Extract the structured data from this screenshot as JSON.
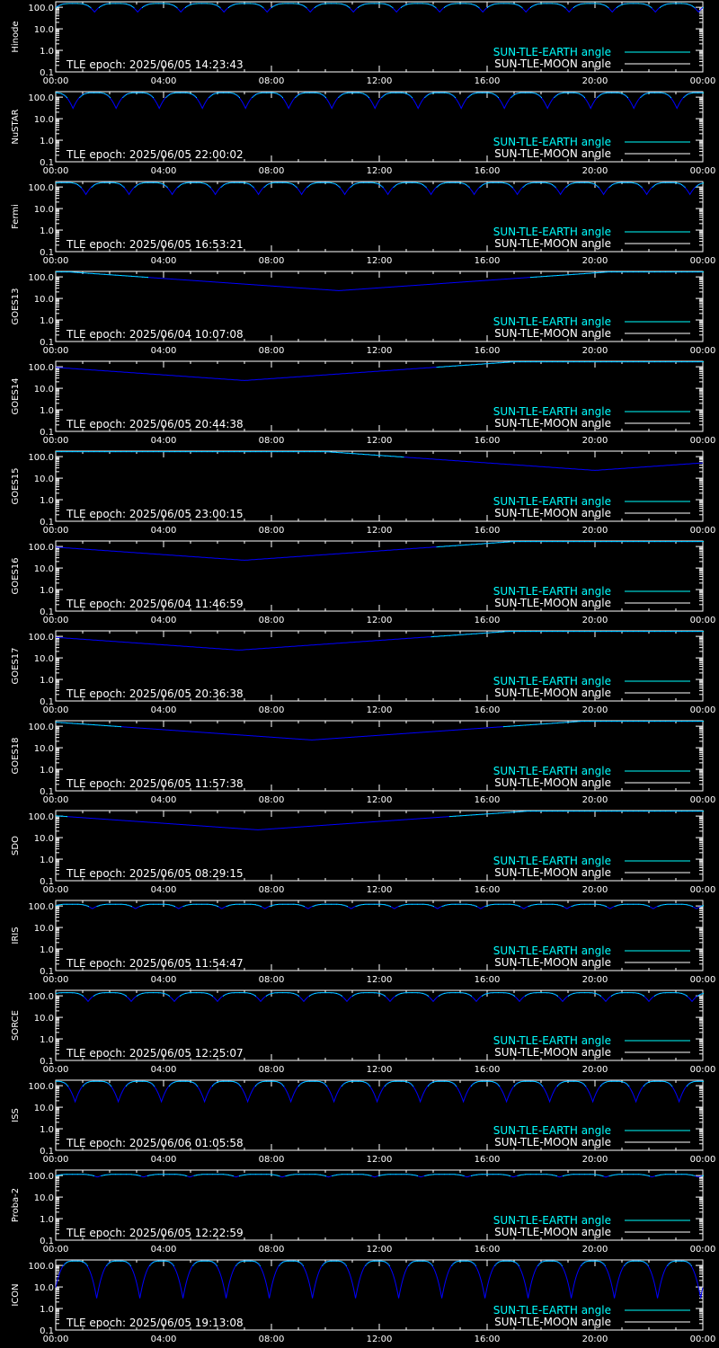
{
  "colors": {
    "background": "#000000",
    "axes": "#ffffff",
    "earth_angle": "#00ffff",
    "moon_angle": "#ffffff",
    "earth_angle_curve": "#0000ff"
  },
  "chart_data": [
    {
      "type": "line",
      "ylabel": "Hinode",
      "epoch": "TLE epoch: 2025/06/05 14:23:43",
      "yticks": [
        "100.0",
        "10.0",
        "1.0",
        "0.1"
      ],
      "xticks": [
        "00:00",
        "04:00",
        "08:00",
        "12:00",
        "16:00",
        "20:00",
        "00:00"
      ],
      "legend": [
        "SUN-TLE-EARTH angle",
        "SUN-TLE-MOON angle"
      ],
      "yscale": "log",
      "ylim": [
        0.1,
        180
      ],
      "pattern": "periodic",
      "orbits": 15,
      "min_deg": 60,
      "max_deg": 150,
      "phase": 0.1
    },
    {
      "type": "line",
      "ylabel": "NuSTAR",
      "epoch": "TLE epoch: 2025/06/05 22:00:02",
      "yticks": [
        "100.0",
        "10.0",
        "1.0",
        "0.1"
      ],
      "xticks": [
        "00:00",
        "04:00",
        "08:00",
        "12:00",
        "16:00",
        "20:00",
        "00:00"
      ],
      "legend": [
        "SUN-TLE-EARTH angle",
        "SUN-TLE-MOON angle"
      ],
      "yscale": "log",
      "ylim": [
        0.1,
        180
      ],
      "pattern": "periodic",
      "orbits": 15,
      "min_deg": 30,
      "max_deg": 160,
      "phase": 0.6
    },
    {
      "type": "line",
      "ylabel": "Fermi",
      "epoch": "TLE epoch: 2025/06/05 16:53:21",
      "yticks": [
        "100.0",
        "10.0",
        "1.0",
        "0.1"
      ],
      "xticks": [
        "00:00",
        "04:00",
        "08:00",
        "12:00",
        "16:00",
        "20:00",
        "00:00"
      ],
      "legend": [
        "SUN-TLE-EARTH angle",
        "SUN-TLE-MOON angle"
      ],
      "yscale": "log",
      "ylim": [
        0.1,
        180
      ],
      "pattern": "periodic",
      "orbits": 15,
      "min_deg": 45,
      "max_deg": 160,
      "phase": 0.3
    },
    {
      "type": "line",
      "ylabel": "GOES13",
      "epoch": "TLE epoch: 2025/06/04 10:07:08",
      "yticks": [
        "100.0",
        "10.0",
        "1.0",
        "0.1"
      ],
      "xticks": [
        "00:00",
        "04:00",
        "08:00",
        "12:00",
        "16:00",
        "20:00",
        "00:00"
      ],
      "legend": [
        "SUN-TLE-EARTH angle",
        "SUN-TLE-MOON angle"
      ],
      "yscale": "log",
      "ylim": [
        0.1,
        180
      ],
      "pattern": "geo",
      "min_hour": 10.5,
      "min_deg": 23,
      "max_deg": 170
    },
    {
      "type": "line",
      "ylabel": "GOES14",
      "epoch": "TLE epoch: 2025/06/05 20:44:38",
      "yticks": [
        "100.0",
        "10.0",
        "1.0",
        "0.1"
      ],
      "xticks": [
        "00:00",
        "04:00",
        "08:00",
        "12:00",
        "16:00",
        "20:00",
        "00:00"
      ],
      "legend": [
        "SUN-TLE-EARTH angle",
        "SUN-TLE-MOON angle"
      ],
      "yscale": "log",
      "ylim": [
        0.1,
        180
      ],
      "pattern": "geo",
      "min_hour": 7.0,
      "min_deg": 23,
      "max_deg": 170
    },
    {
      "type": "line",
      "ylabel": "GOES15",
      "epoch": "TLE epoch: 2025/06/05 23:00:15",
      "yticks": [
        "100.0",
        "10.0",
        "1.0",
        "0.1"
      ],
      "xticks": [
        "00:00",
        "04:00",
        "08:00",
        "12:00",
        "16:00",
        "20:00",
        "00:00"
      ],
      "legend": [
        "SUN-TLE-EARTH angle",
        "SUN-TLE-MOON angle"
      ],
      "yscale": "log",
      "ylim": [
        0.1,
        180
      ],
      "pattern": "geo",
      "min_hour": 20.0,
      "min_deg": 23,
      "max_deg": 170
    },
    {
      "type": "line",
      "ylabel": "GOES16",
      "epoch": "TLE epoch: 2025/06/04 11:46:59",
      "yticks": [
        "100.0",
        "10.0",
        "1.0",
        "0.1"
      ],
      "xticks": [
        "00:00",
        "04:00",
        "08:00",
        "12:00",
        "16:00",
        "20:00",
        "00:00"
      ],
      "legend": [
        "SUN-TLE-EARTH angle",
        "SUN-TLE-MOON angle"
      ],
      "yscale": "log",
      "ylim": [
        0.1,
        180
      ],
      "pattern": "geo",
      "min_hour": 7.0,
      "min_deg": 23,
      "max_deg": 170
    },
    {
      "type": "line",
      "ylabel": "GOES17",
      "epoch": "TLE epoch: 2025/06/05 20:36:38",
      "yticks": [
        "100.0",
        "10.0",
        "1.0",
        "0.1"
      ],
      "xticks": [
        "00:00",
        "04:00",
        "08:00",
        "12:00",
        "16:00",
        "20:00",
        "00:00"
      ],
      "legend": [
        "SUN-TLE-EARTH angle",
        "SUN-TLE-MOON angle"
      ],
      "yscale": "log",
      "ylim": [
        0.1,
        180
      ],
      "pattern": "geo",
      "min_hour": 6.8,
      "min_deg": 23,
      "max_deg": 170
    },
    {
      "type": "line",
      "ylabel": "GOES18",
      "epoch": "TLE epoch: 2025/06/05 11:57:38",
      "yticks": [
        "100.0",
        "10.0",
        "1.0",
        "0.1"
      ],
      "xticks": [
        "00:00",
        "04:00",
        "08:00",
        "12:00",
        "16:00",
        "20:00",
        "00:00"
      ],
      "legend": [
        "SUN-TLE-EARTH angle",
        "SUN-TLE-MOON angle"
      ],
      "yscale": "log",
      "ylim": [
        0.1,
        180
      ],
      "pattern": "geo",
      "min_hour": 9.5,
      "min_deg": 23,
      "max_deg": 170
    },
    {
      "type": "line",
      "ylabel": "SDO",
      "epoch": "TLE epoch: 2025/06/05 08:29:15",
      "yticks": [
        "100.0",
        "10.0",
        "1.0",
        "0.1"
      ],
      "xticks": [
        "00:00",
        "04:00",
        "08:00",
        "12:00",
        "16:00",
        "20:00",
        "00:00"
      ],
      "legend": [
        "SUN-TLE-EARTH angle",
        "SUN-TLE-MOON angle"
      ],
      "yscale": "log",
      "ylim": [
        0.1,
        180
      ],
      "pattern": "geo",
      "min_hour": 7.5,
      "min_deg": 23,
      "max_deg": 170
    },
    {
      "type": "line",
      "ylabel": "IRIS",
      "epoch": "TLE epoch: 2025/06/05 11:54:47",
      "yticks": [
        "100.0",
        "10.0",
        "1.0",
        "0.1"
      ],
      "xticks": [
        "00:00",
        "04:00",
        "08:00",
        "12:00",
        "16:00",
        "20:00",
        "00:00"
      ],
      "legend": [
        "SUN-TLE-EARTH angle",
        "SUN-TLE-MOON angle"
      ],
      "yscale": "log",
      "ylim": [
        0.1,
        180
      ],
      "pattern": "periodic",
      "orbits": 15,
      "min_deg": 75,
      "max_deg": 120,
      "phase": 0.15
    },
    {
      "type": "line",
      "ylabel": "SORCE",
      "epoch": "TLE epoch: 2025/06/05 12:25:07",
      "yticks": [
        "100.0",
        "10.0",
        "1.0",
        "0.1"
      ],
      "xticks": [
        "00:00",
        "04:00",
        "08:00",
        "12:00",
        "16:00",
        "20:00",
        "00:00"
      ],
      "legend": [
        "SUN-TLE-EARTH angle",
        "SUN-TLE-MOON angle"
      ],
      "yscale": "log",
      "ylim": [
        0.1,
        180
      ],
      "pattern": "periodic",
      "orbits": 15,
      "min_deg": 55,
      "max_deg": 140,
      "phase": 0.25
    },
    {
      "type": "line",
      "ylabel": "ISS",
      "epoch": "TLE epoch: 2025/06/06 01:05:58",
      "yticks": [
        "100.0",
        "10.0",
        "1.0",
        "0.1"
      ],
      "xticks": [
        "00:00",
        "04:00",
        "08:00",
        "12:00",
        "16:00",
        "20:00",
        "00:00"
      ],
      "legend": [
        "SUN-TLE-EARTH angle",
        "SUN-TLE-MOON angle"
      ],
      "yscale": "log",
      "ylim": [
        0.1,
        180
      ],
      "pattern": "periodic",
      "orbits": 15,
      "min_deg": 18,
      "max_deg": 160,
      "phase": 0.55
    },
    {
      "type": "line",
      "ylabel": "Proba-2",
      "epoch": "TLE epoch: 2025/06/05 12:22:59",
      "yticks": [
        "100.0",
        "10.0",
        "1.0",
        "0.1"
      ],
      "xticks": [
        "00:00",
        "04:00",
        "08:00",
        "12:00",
        "16:00",
        "20:00",
        "00:00"
      ],
      "legend": [
        "SUN-TLE-EARTH angle",
        "SUN-TLE-MOON angle"
      ],
      "yscale": "log",
      "ylim": [
        0.1,
        180
      ],
      "pattern": "periodic",
      "orbits": 14,
      "min_deg": 85,
      "max_deg": 115,
      "phase": 0.1
    },
    {
      "type": "line",
      "ylabel": "ICON",
      "epoch": "TLE epoch: 2025/06/05 19:13:08",
      "yticks": [
        "100.0",
        "10.0",
        "1.0",
        "0.1"
      ],
      "xticks": [
        "00:00",
        "04:00",
        "08:00",
        "12:00",
        "16:00",
        "20:00",
        "00:00"
      ],
      "legend": [
        "SUN-TLE-EARTH angle",
        "SUN-TLE-MOON angle"
      ],
      "yscale": "log",
      "ylim": [
        0.1,
        180
      ],
      "pattern": "periodic",
      "orbits": 15,
      "min_deg": 3,
      "max_deg": 160,
      "phase": 0.05
    }
  ]
}
